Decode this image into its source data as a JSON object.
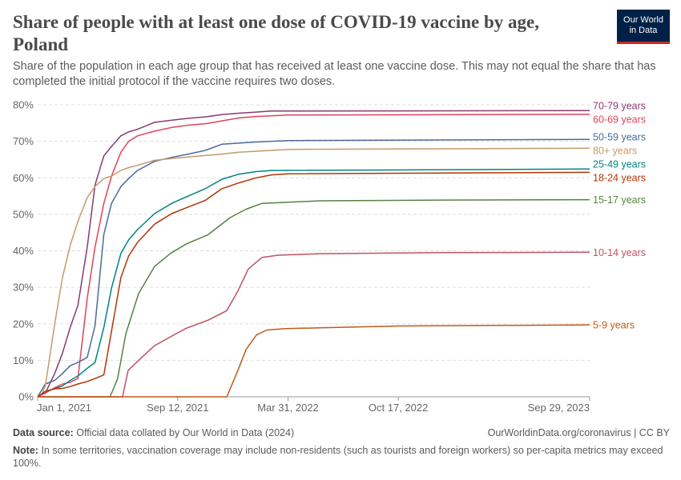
{
  "header": {
    "title": "Share of people with at least one dose of COVID-19 vaccine by age, Poland",
    "subtitle": "Share of the population in each age group that has received at least one vaccine dose. This may not equal the share that has completed the initial protocol if the vaccine requires two doses.",
    "logo_line1": "Our World",
    "logo_line2": "in Data"
  },
  "footer": {
    "source_label": "Data source:",
    "source_text": "Official data collated by Our World in Data (2024)",
    "url_license": "OurWorldinData.org/coronavirus | CC BY",
    "note_label": "Note:",
    "note_text": "In some territories, vaccination coverage may include non-residents (such as tourists and foreign workers) so per-capita metrics may exceed 100%."
  },
  "chart_data": {
    "type": "line",
    "title": "Share of people with at least one dose of COVID-19 vaccine by age, Poland",
    "xlabel": "",
    "ylabel": "",
    "xlim": [
      "2021-01-01",
      "2023-09-29"
    ],
    "ylim": [
      0,
      80
    ],
    "y_unit": "%",
    "grid": "horizontal dashed",
    "legend": "right, labels at line ends",
    "x_ticks": [
      "Jan 1, 2021",
      "Sep 12, 2021",
      "Mar 31, 2022",
      "Oct 17, 2022",
      "Sep 29, 2023"
    ],
    "x_tick_dates": [
      "2021-01-01",
      "2021-09-12",
      "2022-03-31",
      "2022-10-17",
      "2023-09-29"
    ],
    "y_ticks": [
      "0%",
      "10%",
      "20%",
      "30%",
      "40%",
      "50%",
      "60%",
      "70%",
      "80%"
    ],
    "y_tick_values": [
      0,
      10,
      20,
      30,
      40,
      50,
      60,
      70,
      80
    ],
    "series": [
      {
        "name": "70-79 years",
        "color": "#883b6e",
        "points": [
          [
            "2021-01-01",
            0
          ],
          [
            "2021-01-15",
            1
          ],
          [
            "2021-02-01",
            6.4
          ],
          [
            "2021-02-15",
            12
          ],
          [
            "2021-03-01",
            19
          ],
          [
            "2021-03-15",
            25
          ],
          [
            "2021-04-01",
            41
          ],
          [
            "2021-04-15",
            58
          ],
          [
            "2021-05-01",
            66
          ],
          [
            "2021-05-15",
            68.6
          ],
          [
            "2021-06-01",
            71.5
          ],
          [
            "2021-06-15",
            72.6
          ],
          [
            "2021-07-01",
            73.3
          ],
          [
            "2021-08-01",
            75.2
          ],
          [
            "2021-09-01",
            75.8
          ],
          [
            "2021-10-01",
            76.3
          ],
          [
            "2021-11-01",
            76.7
          ],
          [
            "2021-12-01",
            77.3
          ],
          [
            "2022-01-01",
            77.7
          ],
          [
            "2022-02-01",
            78
          ],
          [
            "2022-03-01",
            78.3
          ],
          [
            "2023-09-29",
            78.4
          ]
        ]
      },
      {
        "name": "60-69 years",
        "color": "#e0435b",
        "points": [
          [
            "2021-01-01",
            0
          ],
          [
            "2021-01-15",
            1
          ],
          [
            "2021-02-01",
            2.5
          ],
          [
            "2021-02-15",
            3.5
          ],
          [
            "2021-03-01",
            4
          ],
          [
            "2021-03-15",
            5
          ],
          [
            "2021-04-01",
            27
          ],
          [
            "2021-04-15",
            41
          ],
          [
            "2021-05-01",
            53
          ],
          [
            "2021-05-15",
            60.5
          ],
          [
            "2021-06-01",
            67
          ],
          [
            "2021-06-15",
            70
          ],
          [
            "2021-07-01",
            71.5
          ],
          [
            "2021-08-01",
            72.8
          ],
          [
            "2021-09-01",
            73.8
          ],
          [
            "2021-10-01",
            74.4
          ],
          [
            "2021-11-01",
            74.8
          ],
          [
            "2021-12-01",
            75.6
          ],
          [
            "2022-01-01",
            76.4
          ],
          [
            "2022-02-01",
            76.8
          ],
          [
            "2022-03-01",
            77
          ],
          [
            "2022-04-01",
            77.2
          ],
          [
            "2023-09-29",
            77.4
          ]
        ]
      },
      {
        "name": "50-59 years",
        "color": "#4c6a9c",
        "points": [
          [
            "2021-01-01",
            0
          ],
          [
            "2021-01-15",
            3.5
          ],
          [
            "2021-02-01",
            4.5
          ],
          [
            "2021-02-15",
            6.4
          ],
          [
            "2021-03-01",
            8.5
          ],
          [
            "2021-03-15",
            9.4
          ],
          [
            "2021-04-01",
            10.8
          ],
          [
            "2021-04-15",
            19.5
          ],
          [
            "2021-05-01",
            44.5
          ],
          [
            "2021-05-15",
            53
          ],
          [
            "2021-06-01",
            57.6
          ],
          [
            "2021-06-15",
            59.8
          ],
          [
            "2021-07-01",
            62
          ],
          [
            "2021-08-01",
            64.5
          ],
          [
            "2021-09-01",
            65.6
          ],
          [
            "2021-10-01",
            66.5
          ],
          [
            "2021-11-01",
            67.5
          ],
          [
            "2021-12-01",
            69.2
          ],
          [
            "2022-01-01",
            69.5
          ],
          [
            "2022-02-01",
            69.8
          ],
          [
            "2022-03-01",
            70
          ],
          [
            "2022-04-01",
            70.2
          ],
          [
            "2023-09-29",
            70.5
          ]
        ]
      },
      {
        "name": "80+ years",
        "color": "#c49a6a",
        "points": [
          [
            "2021-01-01",
            0
          ],
          [
            "2021-01-08",
            0.5
          ],
          [
            "2021-01-15",
            3
          ],
          [
            "2021-02-01",
            20
          ],
          [
            "2021-02-15",
            32.7
          ],
          [
            "2021-03-01",
            41.5
          ],
          [
            "2021-03-15",
            48
          ],
          [
            "2021-04-01",
            54.6
          ],
          [
            "2021-04-15",
            57.6
          ],
          [
            "2021-05-01",
            59.8
          ],
          [
            "2021-05-15",
            60.5
          ],
          [
            "2021-06-01",
            62
          ],
          [
            "2021-06-15",
            62.8
          ],
          [
            "2021-07-01",
            63.4
          ],
          [
            "2021-08-01",
            64.8
          ],
          [
            "2021-09-01",
            65.3
          ],
          [
            "2021-10-01",
            65.7
          ],
          [
            "2021-11-01",
            66.1
          ],
          [
            "2021-12-01",
            66.5
          ],
          [
            "2022-01-01",
            67
          ],
          [
            "2022-03-01",
            67.5
          ],
          [
            "2022-04-01",
            67.8
          ],
          [
            "2023-09-29",
            68.1
          ]
        ]
      },
      {
        "name": "25-49 years",
        "color": "#00847e",
        "points": [
          [
            "2021-01-01",
            0
          ],
          [
            "2021-01-15",
            1.5
          ],
          [
            "2021-02-01",
            2.2
          ],
          [
            "2021-02-15",
            3
          ],
          [
            "2021-03-01",
            4.5
          ],
          [
            "2021-03-15",
            5.7
          ],
          [
            "2021-04-01",
            7.8
          ],
          [
            "2021-04-15",
            9.4
          ],
          [
            "2021-05-01",
            19
          ],
          [
            "2021-05-15",
            29.8
          ],
          [
            "2021-06-01",
            39.3
          ],
          [
            "2021-06-15",
            43
          ],
          [
            "2021-07-01",
            45.8
          ],
          [
            "2021-08-01",
            50.2
          ],
          [
            "2021-09-01",
            53
          ],
          [
            "2021-10-01",
            55
          ],
          [
            "2021-11-01",
            57
          ],
          [
            "2021-12-01",
            59.6
          ],
          [
            "2022-01-01",
            61
          ],
          [
            "2022-02-01",
            61.7
          ],
          [
            "2022-03-01",
            62
          ],
          [
            "2023-09-29",
            62.4
          ]
        ]
      },
      {
        "name": "18-24 years",
        "color": "#b13507",
        "points": [
          [
            "2021-01-01",
            0
          ],
          [
            "2021-01-15",
            1.5
          ],
          [
            "2021-02-01",
            2.2
          ],
          [
            "2021-02-15",
            2.3
          ],
          [
            "2021-03-01",
            2.8
          ],
          [
            "2021-03-15",
            3.5
          ],
          [
            "2021-04-01",
            4.2
          ],
          [
            "2021-04-15",
            5
          ],
          [
            "2021-05-01",
            6
          ],
          [
            "2021-05-15",
            18
          ],
          [
            "2021-06-01",
            32.7
          ],
          [
            "2021-06-15",
            38.6
          ],
          [
            "2021-07-01",
            42.3
          ],
          [
            "2021-08-01",
            47.3
          ],
          [
            "2021-09-01",
            50.2
          ],
          [
            "2021-10-01",
            52
          ],
          [
            "2021-11-01",
            53.8
          ],
          [
            "2021-12-01",
            57
          ],
          [
            "2022-01-01",
            58.6
          ],
          [
            "2022-02-01",
            60
          ],
          [
            "2022-03-01",
            60.8
          ],
          [
            "2022-04-01",
            61.1
          ],
          [
            "2023-09-29",
            61.5
          ]
        ]
      },
      {
        "name": "15-17 years",
        "color": "#578145",
        "points": [
          [
            "2021-01-01",
            0
          ],
          [
            "2021-05-12",
            0
          ],
          [
            "2021-05-16",
            1.3
          ],
          [
            "2021-05-26",
            5
          ],
          [
            "2021-06-10",
            17.3
          ],
          [
            "2021-07-03",
            28.3
          ],
          [
            "2021-08-01",
            35.7
          ],
          [
            "2021-08-30",
            39.3
          ],
          [
            "2021-09-28",
            41.9
          ],
          [
            "2021-11-06",
            44.4
          ],
          [
            "2021-12-16",
            49.1
          ],
          [
            "2022-01-14",
            51.4
          ],
          [
            "2022-02-12",
            53
          ],
          [
            "2022-05-29",
            53.7
          ],
          [
            "2023-01-01",
            53.9
          ],
          [
            "2023-09-29",
            54
          ]
        ]
      },
      {
        "name": "10-14 years",
        "color": "#c15065",
        "points": [
          [
            "2021-01-01",
            0
          ],
          [
            "2021-06-04",
            0
          ],
          [
            "2021-06-14",
            7.2
          ],
          [
            "2021-07-03",
            10
          ],
          [
            "2021-08-01",
            14
          ],
          [
            "2021-09-09",
            17.3
          ],
          [
            "2021-09-28",
            18.8
          ],
          [
            "2021-11-06",
            21
          ],
          [
            "2021-12-10",
            23.6
          ],
          [
            "2021-12-30",
            29
          ],
          [
            "2022-01-18",
            35
          ],
          [
            "2022-02-12",
            38.2
          ],
          [
            "2022-03-13",
            38.8
          ],
          [
            "2022-05-29",
            39.2
          ],
          [
            "2023-01-01",
            39.5
          ],
          [
            "2023-09-29",
            39.6
          ]
        ]
      },
      {
        "name": "5-9 years",
        "color": "#c05917",
        "points": [
          [
            "2021-01-01",
            0
          ],
          [
            "2021-12-10",
            0
          ],
          [
            "2021-12-30",
            7.2
          ],
          [
            "2022-01-14",
            13
          ],
          [
            "2022-02-02",
            17
          ],
          [
            "2022-02-21",
            18.3
          ],
          [
            "2022-03-27",
            18.7
          ],
          [
            "2022-05-29",
            18.9
          ],
          [
            "2022-10-17",
            19.4
          ],
          [
            "2023-09-29",
            19.7
          ]
        ]
      }
    ]
  }
}
